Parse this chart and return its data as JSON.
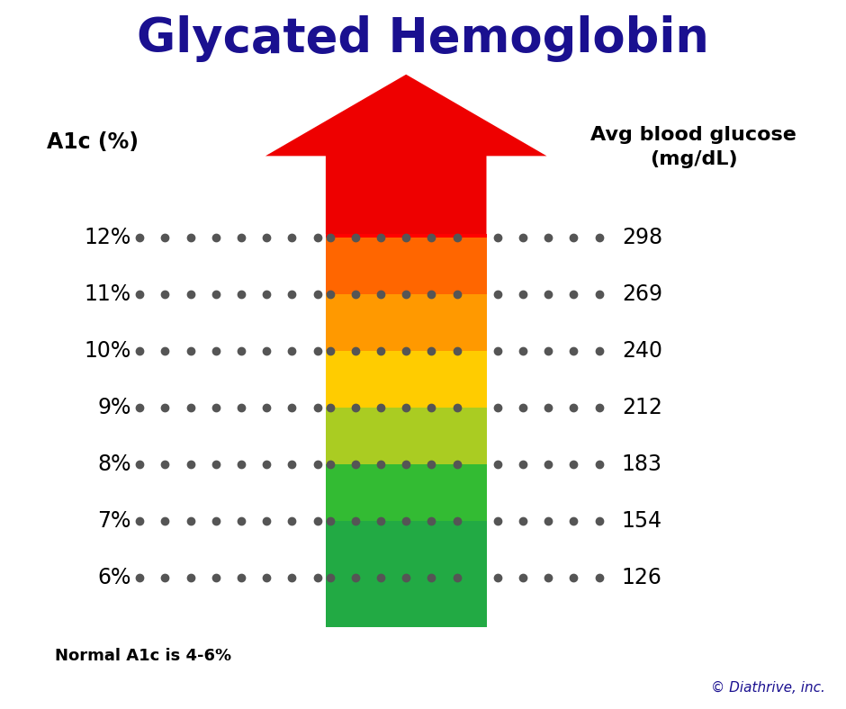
{
  "title": "Glycated Hemoglobin",
  "title_color": "#1a1090",
  "title_fontsize": 38,
  "left_label": "A1c (%)",
  "right_label_line1": "Avg blood glucose",
  "right_label_line2": "(mg/dL)",
  "bottom_note": "Normal A1c is 4-6%",
  "copyright": "© Diathrive, inc.",
  "a1c_labels": [
    "12%",
    "11%",
    "10%",
    "9%",
    "8%",
    "7%",
    "6%"
  ],
  "glucose_labels": [
    "298",
    "269",
    "240",
    "212",
    "183",
    "154",
    "126"
  ],
  "row_colors": [
    "#ff0000",
    "#ff6600",
    "#ff9900",
    "#ffcc00",
    "#aacc22",
    "#33bb33",
    "#22aa44"
  ],
  "background_color": "#ffffff",
  "dot_color": "#555555",
  "arrow_color": "#ee0000"
}
